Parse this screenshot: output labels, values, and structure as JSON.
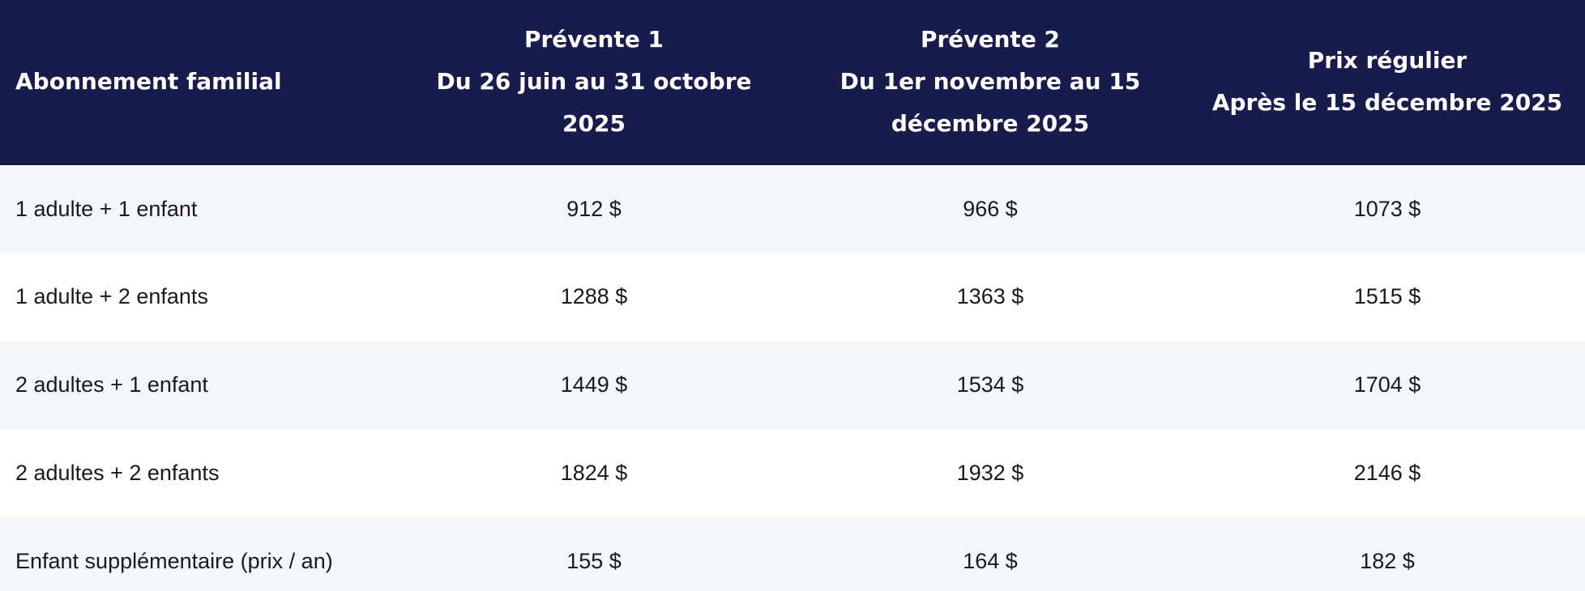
{
  "table": {
    "headers": [
      {
        "lines": [
          "Abonnement familial"
        ]
      },
      {
        "lines": [
          "Prévente 1",
          "Du 26 juin au 31 octobre",
          "2025"
        ]
      },
      {
        "lines": [
          "Prévente 2",
          "Du 1er novembre au 15",
          "décembre 2025"
        ]
      },
      {
        "lines": [
          "Prix régulier",
          "Après le 15 décembre 2025"
        ]
      }
    ],
    "rows": [
      [
        "1 adulte + 1 enfant",
        "912 $",
        "966 $",
        "1073 $"
      ],
      [
        "1 adulte + 2 enfants",
        "1288 $",
        "1363 $",
        "1515 $"
      ],
      [
        "2 adultes + 1 enfant",
        "1449 $",
        "1534 $",
        "1704 $"
      ],
      [
        "2 adultes + 2 enfants",
        "1824 $",
        "1932 $",
        "2146 $"
      ],
      [
        "Enfant supplémentaire (prix / an)",
        "155 $",
        "164 $",
        "182 $"
      ]
    ]
  },
  "colors": {
    "header_background": "#181c4c",
    "header_text": "#ffffff",
    "row_alt_background": "#f4f7fa",
    "row_background": "#ffffff",
    "body_text": "#1a1a1a"
  }
}
